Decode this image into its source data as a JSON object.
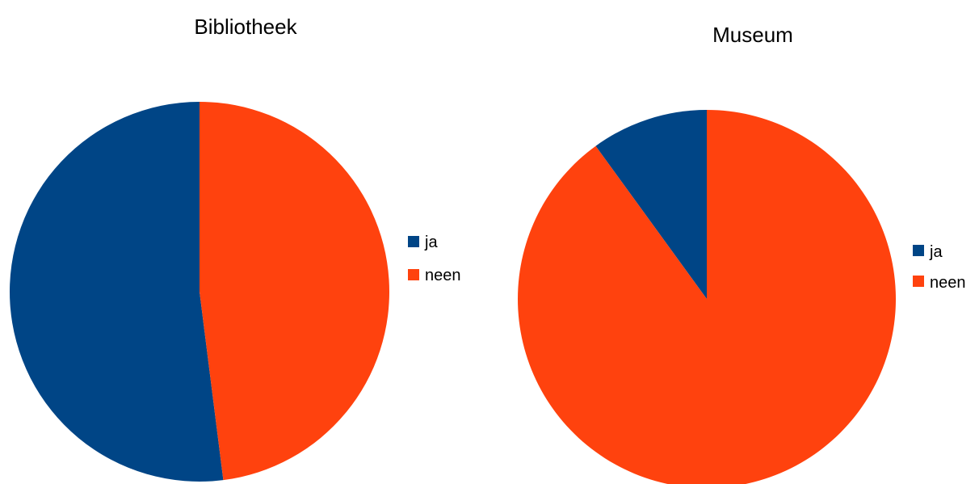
{
  "chart_data": [
    {
      "type": "pie",
      "title": "Bibliotheek",
      "categories": [
        "ja",
        "neen"
      ],
      "values": [
        52,
        48
      ],
      "colors": [
        "#004586",
        "#ff420e"
      ],
      "legend": {
        "position": "right",
        "entries": [
          "ja",
          "neen"
        ]
      }
    },
    {
      "type": "pie",
      "title": "Museum",
      "categories": [
        "ja",
        "neen"
      ],
      "values": [
        10,
        90
      ],
      "colors": [
        "#004586",
        "#ff420e"
      ],
      "legend": {
        "position": "right",
        "entries": [
          "ja",
          "neen"
        ]
      }
    }
  ]
}
